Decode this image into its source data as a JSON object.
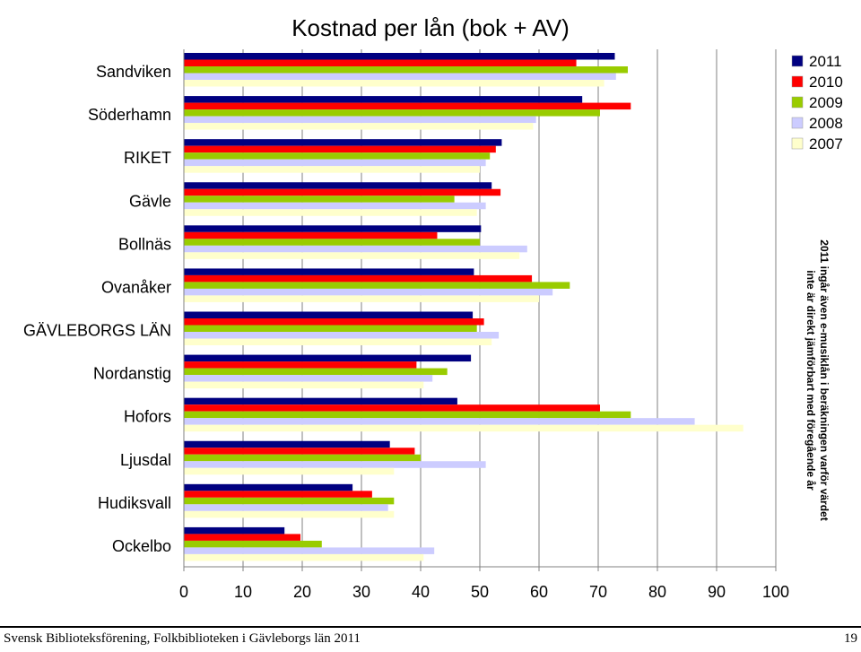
{
  "chart_data": {
    "type": "bar",
    "orientation": "horizontal",
    "title": "Kostnad per lån (bok + AV)",
    "categories": [
      "Sandviken",
      "Söderhamn",
      "RIKET",
      "Gävle",
      "Bollnäs",
      "Ovanåker",
      "GÄVLEBORGS LÄN",
      "Nordanstig",
      "Hofors",
      "Ljusdal",
      "Hudiksvall",
      "Ockelbo"
    ],
    "series": [
      {
        "name": "2011",
        "color": "#000080",
        "values": [
          72.8,
          67.3,
          53.7,
          52.0,
          50.2,
          49.0,
          48.8,
          48.5,
          46.2,
          34.8,
          28.5,
          17.0
        ]
      },
      {
        "name": "2010",
        "color": "#ff0000",
        "values": [
          66.3,
          75.5,
          52.7,
          53.5,
          42.8,
          58.8,
          50.7,
          39.3,
          70.3,
          39.0,
          31.8,
          19.7
        ]
      },
      {
        "name": "2009",
        "color": "#99cc00",
        "values": [
          75.0,
          70.3,
          51.7,
          45.7,
          50.0,
          65.2,
          49.5,
          44.5,
          75.5,
          40.0,
          35.5,
          23.3
        ]
      },
      {
        "name": "2008",
        "color": "#ccccff",
        "values": [
          73.0,
          59.5,
          51.0,
          51.0,
          58.0,
          62.3,
          53.2,
          42.0,
          86.3,
          51.0,
          34.5,
          42.3
        ]
      },
      {
        "name": "2007",
        "color": "#ffffcc",
        "values": [
          71.0,
          59.0,
          50.0,
          49.5,
          56.7,
          60.0,
          52.0,
          40.5,
          94.5,
          35.5,
          35.5,
          40.5
        ]
      }
    ],
    "xlim": [
      0,
      100
    ],
    "xticks": [
      "0",
      "10",
      "20",
      "30",
      "40",
      "50",
      "60",
      "70",
      "80",
      "90",
      "100"
    ],
    "grid": true,
    "legend_position": "right"
  },
  "note": {
    "line1": "2011 ingår även e-musiklån i beräkningen varför värdet",
    "line2": "inte är direkt jämförbart med föregående år"
  },
  "footer": {
    "text": "Svensk Biblioteksförening, Folkbiblioteken i Gävleborgs län 2011",
    "page_number": "19"
  },
  "colors": {
    "background": "#ffffff",
    "plot_area": "#ffffff",
    "gridline": "#808080"
  }
}
